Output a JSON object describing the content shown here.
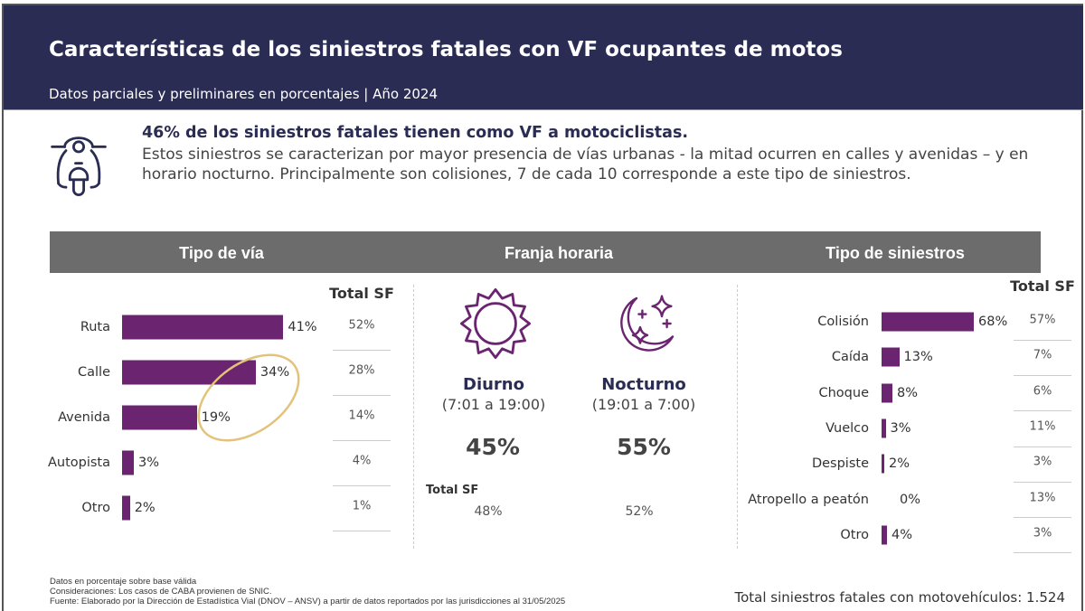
{
  "header": {
    "title": "Características de los siniestros fatales con VF ocupantes de motos",
    "subtitle": "Datos parciales y preliminares en porcentajes | Año 2024"
  },
  "summary": {
    "icon": "scooter-icon",
    "lead": "46% de los siniestros fatales tienen como VF a motociclistas.",
    "text": "Estos siniestros se caracterizan por mayor presencia de vías urbanas - la mitad ocurren en calles y avenidas – y en horario nocturno. Principalmente son colisiones, 7 de cada 10 corresponde a este tipo de siniestros."
  },
  "sections": {
    "via": "Tipo de vía",
    "franja": "Franja horaria",
    "siniestros": "Tipo de siniestros"
  },
  "colors": {
    "header": "#2a2c54",
    "bar": "#6a2470",
    "section": "#6c6c6c",
    "highlight": "#e3c27a",
    "icon": "#6a2470"
  },
  "chart_data": [
    {
      "type": "bar",
      "orientation": "horizontal",
      "title": "Tipo de vía",
      "categories": [
        "Ruta",
        "Calle",
        "Avenida",
        "Autopista",
        "Otro"
      ],
      "values": [
        41,
        34,
        19,
        3,
        2
      ],
      "value_labels": [
        "41%",
        "34%",
        "19%",
        "3%",
        "2%"
      ],
      "total_sf_label": "Total SF",
      "total_sf": [
        "52%",
        "28%",
        "14%",
        "4%",
        "1%"
      ],
      "highlight": [
        "Calle",
        "Avenida"
      ]
    },
    {
      "type": "table",
      "title": "Franja horaria",
      "categories": [
        "Diurno",
        "Nocturno"
      ],
      "ranges": [
        "(7:01 a 19:00)",
        "(19:01 a 7:00)"
      ],
      "icons": [
        "sun-icon",
        "moon-stars-icon"
      ],
      "value_labels": [
        "45%",
        "55%"
      ],
      "total_sf_label": "Total SF",
      "total_sf": [
        "48%",
        "52%"
      ]
    },
    {
      "type": "bar",
      "orientation": "horizontal",
      "title": "Tipo de siniestros",
      "categories": [
        "Colisión",
        "Caída",
        "Choque",
        "Vuelco",
        "Despiste",
        "Atropello a peatón",
        "Otro"
      ],
      "values": [
        68,
        13,
        8,
        3,
        2,
        0,
        4
      ],
      "value_labels": [
        "68%",
        "13%",
        "8%",
        "3%",
        "2%",
        "0%",
        "4%"
      ],
      "total_sf_label": "Total SF",
      "total_sf": [
        "57%",
        "7%",
        "6%",
        "11%",
        "3%",
        "13%",
        "3%"
      ]
    }
  ],
  "footer": {
    "notes": [
      "Datos en porcentaje sobre base válida",
      "Consideraciones: Los casos de CABA provienen de SNIC.",
      " Fuente: Elaborado por la Dirección de Estadística Vial (DNOV – ANSV) a partir de datos reportados por las jurisdicciones al 31/05/2025"
    ],
    "total": "Total siniestros fatales con motovehículos: 1.524"
  }
}
